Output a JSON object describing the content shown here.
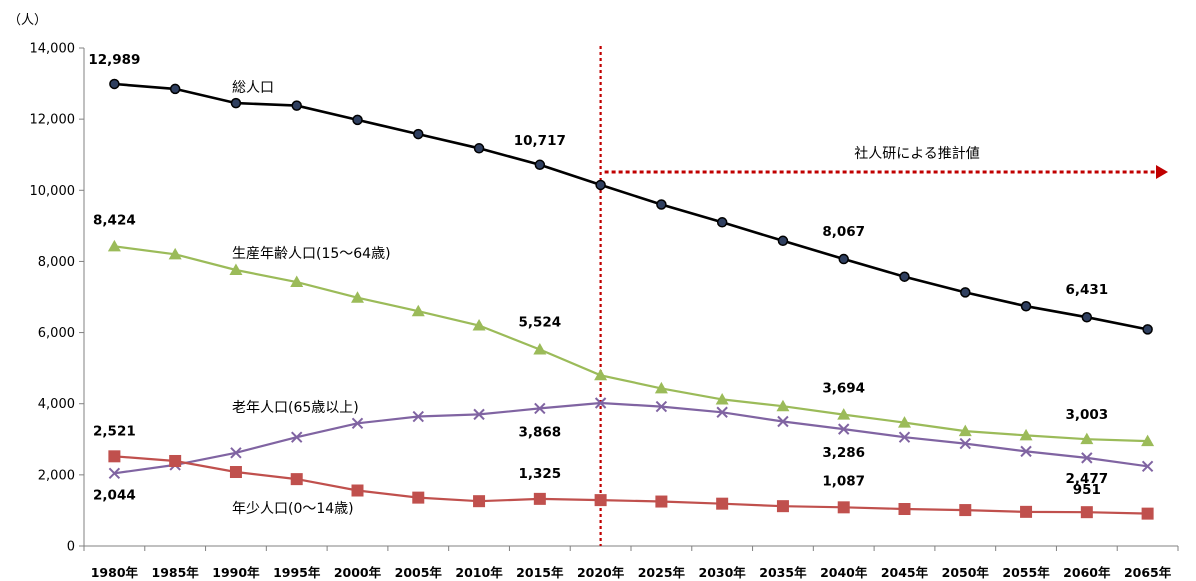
{
  "chart_data": {
    "type": "line",
    "y_unit": "（人）",
    "ylim": [
      0,
      14000
    ],
    "yticks": [
      0,
      2000,
      4000,
      6000,
      8000,
      10000,
      12000,
      14000
    ],
    "ytick_labels": [
      "0",
      "2,000",
      "4,000",
      "6,000",
      "8,000",
      "10,000",
      "12,000",
      "14,000"
    ],
    "grid": false,
    "categories": [
      "1980年",
      "1985年",
      "1990年",
      "1995年",
      "2000年",
      "2005年",
      "2010年",
      "2015年",
      "2020年",
      "2025年",
      "2030年",
      "2035年",
      "2040年",
      "2045年",
      "2050年",
      "2055年",
      "2060年",
      "2065年"
    ],
    "series": [
      {
        "name": "総人口",
        "color": "#000000",
        "marker": "circle",
        "marker_color": "#2f3f5f",
        "values": [
          12989,
          12850,
          12450,
          12380,
          11980,
          11580,
          11180,
          10717,
          10150,
          9600,
          9100,
          8580,
          8067,
          7570,
          7130,
          6740,
          6431,
          6090
        ]
      },
      {
        "name": "生産年齢人口(15～64歳)",
        "color": "#9bbb59",
        "marker": "triangle",
        "marker_color": "#9bbb59",
        "values": [
          8424,
          8200,
          7760,
          7420,
          6980,
          6600,
          6200,
          5524,
          4800,
          4430,
          4120,
          3930,
          3694,
          3470,
          3230,
          3110,
          3003,
          2950
        ]
      },
      {
        "name": "老年人口(65歳以上)",
        "color": "#8064a2",
        "marker": "x",
        "marker_color": "#8064a2",
        "values": [
          2044,
          2280,
          2620,
          3060,
          3450,
          3640,
          3700,
          3868,
          4020,
          3920,
          3760,
          3500,
          3286,
          3060,
          2880,
          2660,
          2477,
          2240
        ]
      },
      {
        "name": "年少人口(0～14歳)",
        "color": "#c0504d",
        "marker": "square",
        "marker_color": "#c0504d",
        "values": [
          2521,
          2390,
          2080,
          1880,
          1560,
          1360,
          1260,
          1325,
          1290,
          1250,
          1190,
          1120,
          1087,
          1040,
          1010,
          960,
          951,
          910
        ]
      }
    ],
    "data_labels": [
      {
        "series": 0,
        "index": 0,
        "text": "12,989"
      },
      {
        "series": 0,
        "index": 7,
        "text": "10,717"
      },
      {
        "series": 0,
        "index": 12,
        "text": "8,067"
      },
      {
        "series": 0,
        "index": 16,
        "text": "6,431"
      },
      {
        "series": 1,
        "index": 0,
        "text": "8,424"
      },
      {
        "series": 1,
        "index": 7,
        "text": "5,524"
      },
      {
        "series": 1,
        "index": 12,
        "text": "3,694"
      },
      {
        "series": 1,
        "index": 16,
        "text": "3,003"
      },
      {
        "series": 2,
        "index": 0,
        "text": "2,044"
      },
      {
        "series": 2,
        "index": 7,
        "text": "3,868"
      },
      {
        "series": 2,
        "index": 12,
        "text": "3,286"
      },
      {
        "series": 2,
        "index": 16,
        "text": "2,477"
      },
      {
        "series": 3,
        "index": 0,
        "text": "2,521"
      },
      {
        "series": 3,
        "index": 7,
        "text": "1,325"
      },
      {
        "series": 3,
        "index": 12,
        "text": "1,087"
      },
      {
        "series": 3,
        "index": 16,
        "text": "951"
      }
    ],
    "annotation": {
      "text": "社人研による推計値",
      "divider_at": "2020年",
      "color": "#c00000"
    }
  }
}
